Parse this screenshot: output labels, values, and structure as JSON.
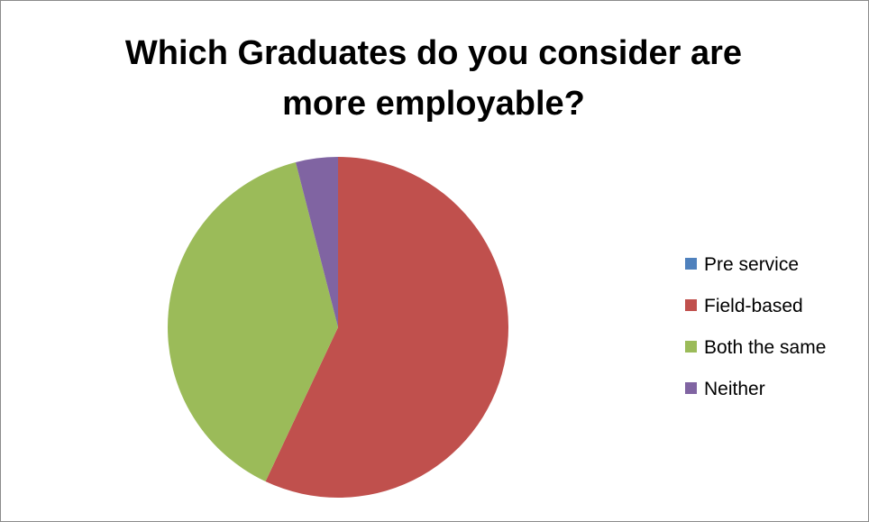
{
  "chart_data": {
    "type": "pie",
    "title_lines": [
      "Which Graduates do you consider are",
      "more employable?"
    ],
    "categories": [
      "Pre service",
      "Field-based",
      "Both the same",
      "Neither"
    ],
    "values": [
      0,
      57,
      39,
      4
    ],
    "colors": [
      "#4f81bd",
      "#c0504d",
      "#9bbb59",
      "#8064a2"
    ],
    "legend_position": "right"
  }
}
